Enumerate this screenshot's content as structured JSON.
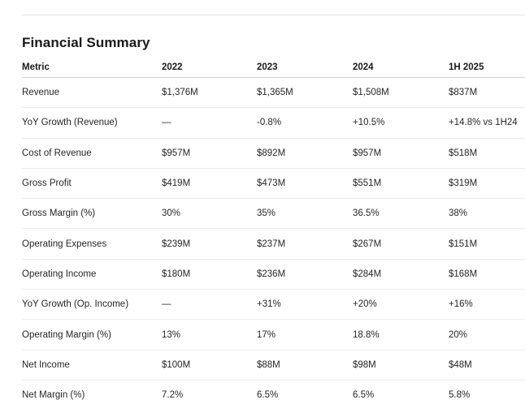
{
  "title": "Financial Summary",
  "columns": [
    "Metric",
    "2022",
    "2023",
    "2024",
    "1H 2025"
  ],
  "rows": [
    [
      "Revenue",
      "$1,376M",
      "$1,365M",
      "$1,508M",
      "$837M"
    ],
    [
      "YoY Growth (Revenue)",
      "—",
      "-0.8%",
      "+10.5%",
      "+14.8% vs 1H24"
    ],
    [
      "Cost of Revenue",
      "$957M",
      "$892M",
      "$957M",
      "$518M"
    ],
    [
      "Gross Profit",
      "$419M",
      "$473M",
      "$551M",
      "$319M"
    ],
    [
      "Gross Margin (%)",
      "30%",
      "35%",
      "36.5%",
      "38%"
    ],
    [
      "Operating Expenses",
      "$239M",
      "$237M",
      "$267M",
      "$151M"
    ],
    [
      "Operating Income",
      "$180M",
      "$236M",
      "$284M",
      "$168M"
    ],
    [
      "YoY Growth (Op. Income)",
      "—",
      "+31%",
      "+20%",
      "+16%"
    ],
    [
      "Operating Margin (%)",
      "13%",
      "17%",
      "18.8%",
      "20%"
    ],
    [
      "Net Income",
      "$100M",
      "$88M",
      "$98M",
      "$48M"
    ],
    [
      "Net Margin (%)",
      "7.2%",
      "6.5%",
      "6.5%",
      "5.8%"
    ]
  ]
}
